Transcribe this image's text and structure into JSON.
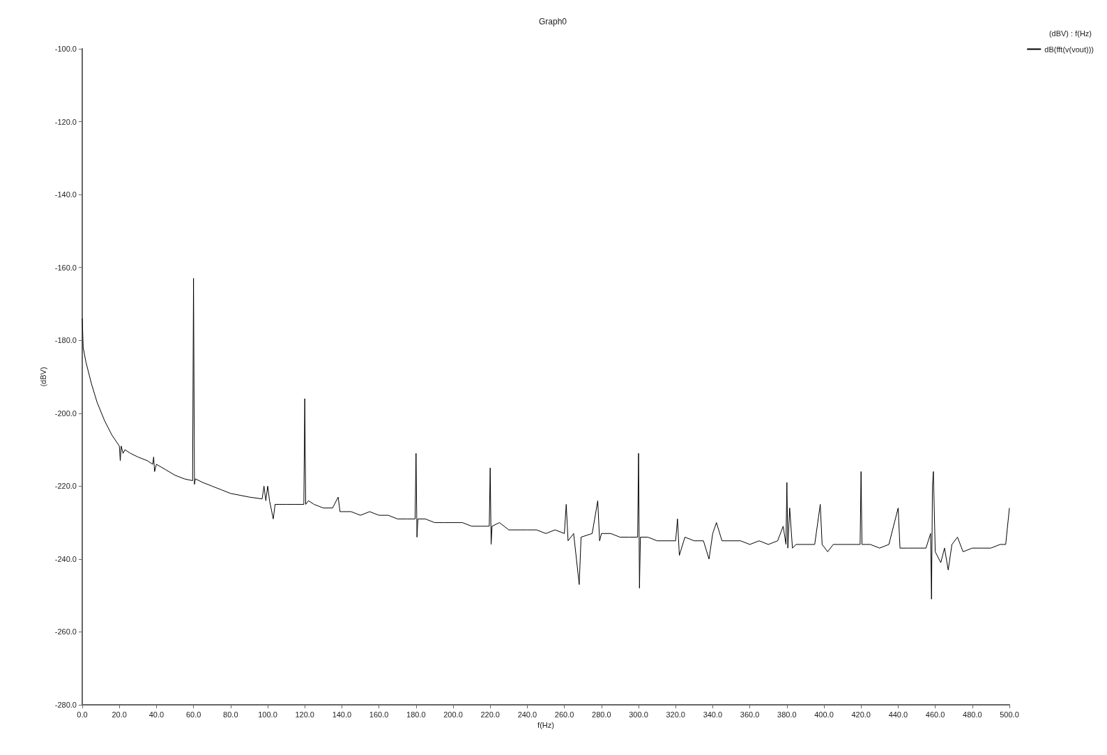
{
  "chart_data": {
    "type": "line",
    "title": "Graph0",
    "xlabel": "f(Hz)",
    "ylabel": "(dBV)",
    "legend_title": "(dBV) : f(Hz)",
    "legend": "top right",
    "grid": false,
    "marker": "none",
    "line_style": "solid",
    "xlim": [
      0,
      500
    ],
    "ylim": [
      -280,
      -100
    ],
    "xticks": [
      {
        "value": 0,
        "label": "0.0"
      },
      {
        "value": 20,
        "label": "20.0"
      },
      {
        "value": 40,
        "label": "40.0"
      },
      {
        "value": 60,
        "label": "60.0"
      },
      {
        "value": 80,
        "label": "80.0"
      },
      {
        "value": 100,
        "label": "100.0"
      },
      {
        "value": 120,
        "label": "120.0"
      },
      {
        "value": 140,
        "label": "140.0"
      },
      {
        "value": 160,
        "label": "160.0"
      },
      {
        "value": 180,
        "label": "180.0"
      },
      {
        "value": 200,
        "label": "200.0"
      },
      {
        "value": 220,
        "label": "220.0"
      },
      {
        "value": 240,
        "label": "240.0"
      },
      {
        "value": 260,
        "label": "260.0"
      },
      {
        "value": 280,
        "label": "280.0"
      },
      {
        "value": 300,
        "label": "300.0"
      },
      {
        "value": 320,
        "label": "320.0"
      },
      {
        "value": 340,
        "label": "340.0"
      },
      {
        "value": 360,
        "label": "360.0"
      },
      {
        "value": 380,
        "label": "380.0"
      },
      {
        "value": 400,
        "label": "400.0"
      },
      {
        "value": 420,
        "label": "420.0"
      },
      {
        "value": 440,
        "label": "440.0"
      },
      {
        "value": 460,
        "label": "460.0"
      },
      {
        "value": 480,
        "label": "480.0"
      },
      {
        "value": 500,
        "label": "500.0"
      }
    ],
    "yticks": [
      {
        "value": -100,
        "label": "-100.0"
      },
      {
        "value": -120,
        "label": "-120.0"
      },
      {
        "value": -140,
        "label": "-140.0"
      },
      {
        "value": -160,
        "label": "-160.0"
      },
      {
        "value": -180,
        "label": "-180.0"
      },
      {
        "value": -200,
        "label": "-200.0"
      },
      {
        "value": -220,
        "label": "-220.0"
      },
      {
        "value": -240,
        "label": "-240.0"
      },
      {
        "value": -260,
        "label": "-260.0"
      },
      {
        "value": -280,
        "label": "-280.0"
      }
    ],
    "series": [
      {
        "name": "dB(fft(v(vout)))",
        "color": "#000000",
        "x": [
          0,
          0.5,
          2,
          5,
          8,
          12,
          16,
          20,
          20.5,
          21,
          22,
          23,
          26,
          30,
          35,
          38,
          38.5,
          39,
          40,
          45,
          50,
          55,
          59.5,
          60,
          60.5,
          61,
          65,
          70,
          75,
          80,
          85,
          90,
          97,
          98,
          99,
          100,
          101,
          103,
          104,
          110,
          115,
          119.5,
          120,
          120.5,
          122,
          125,
          130,
          135,
          138,
          139,
          140,
          145,
          150,
          155,
          160,
          165,
          170,
          175,
          179.5,
          180,
          180.5,
          181,
          185,
          190,
          195,
          200,
          205,
          210,
          215,
          219.5,
          220,
          220.5,
          221,
          225,
          230,
          235,
          240,
          245,
          250,
          255,
          260,
          261,
          262,
          265,
          268,
          269,
          275,
          278,
          279,
          280,
          285,
          290,
          295,
          299.5,
          300,
          300.5,
          301,
          305,
          310,
          315,
          320,
          321,
          322,
          325,
          330,
          335,
          338,
          340,
          342,
          345,
          350,
          355,
          360,
          365,
          370,
          375,
          378,
          379.5,
          380,
          380.5,
          381.5,
          383,
          385,
          390,
          395,
          398,
          399,
          402,
          405,
          410,
          415,
          419.5,
          420,
          420.5,
          425,
          430,
          435,
          440,
          441,
          445,
          450,
          455,
          457.5,
          458,
          458.5,
          459,
          460,
          463,
          465,
          467,
          469,
          472,
          475,
          480,
          485,
          490,
          495,
          498,
          500
        ],
        "values": [
          -174,
          -182,
          -186,
          -192,
          -197,
          -202,
          -206,
          -209,
          -213,
          -209,
          -211,
          -210,
          -211,
          -212,
          -213,
          -214,
          -212,
          -216,
          -214,
          -215.5,
          -217,
          -218,
          -218.5,
          -163,
          -219.5,
          -218,
          -219,
          -220,
          -221,
          -222,
          -222.5,
          -223,
          -223.5,
          -220,
          -224,
          -220,
          -224,
          -229,
          -225,
          -225,
          -225,
          -225,
          -196,
          -225,
          -224,
          -225,
          -226,
          -226,
          -223,
          -227,
          -227,
          -227,
          -228,
          -227,
          -228,
          -228,
          -229,
          -229,
          -229,
          -211,
          -234,
          -229,
          -229,
          -230,
          -230,
          -230,
          -230,
          -231,
          -231,
          -231,
          -215,
          -236,
          -231,
          -230,
          -232,
          -232,
          -232,
          -232,
          -233,
          -232,
          -233,
          -225,
          -235,
          -233,
          -247,
          -234,
          -233,
          -224,
          -235,
          -233,
          -233,
          -234,
          -234,
          -234,
          -211,
          -248,
          -234,
          -234,
          -235,
          -235,
          -235,
          -229,
          -239,
          -234,
          -235,
          -235,
          -240,
          -233,
          -230,
          -235,
          -235,
          -235,
          -236,
          -235,
          -236,
          -235,
          -231,
          -236,
          -219,
          -237,
          -226,
          -237,
          -236,
          -236,
          -236,
          -225,
          -236,
          -238,
          -236,
          -236,
          -236,
          -236,
          -216,
          -236,
          -236,
          -237,
          -236,
          -226,
          -237,
          -237,
          -237,
          -237,
          -233,
          -251,
          -220,
          -216,
          -238,
          -241,
          -237,
          -243,
          -236,
          -234,
          -238,
          -237,
          -237,
          -237,
          -236,
          -236,
          -226
        ]
      }
    ]
  }
}
